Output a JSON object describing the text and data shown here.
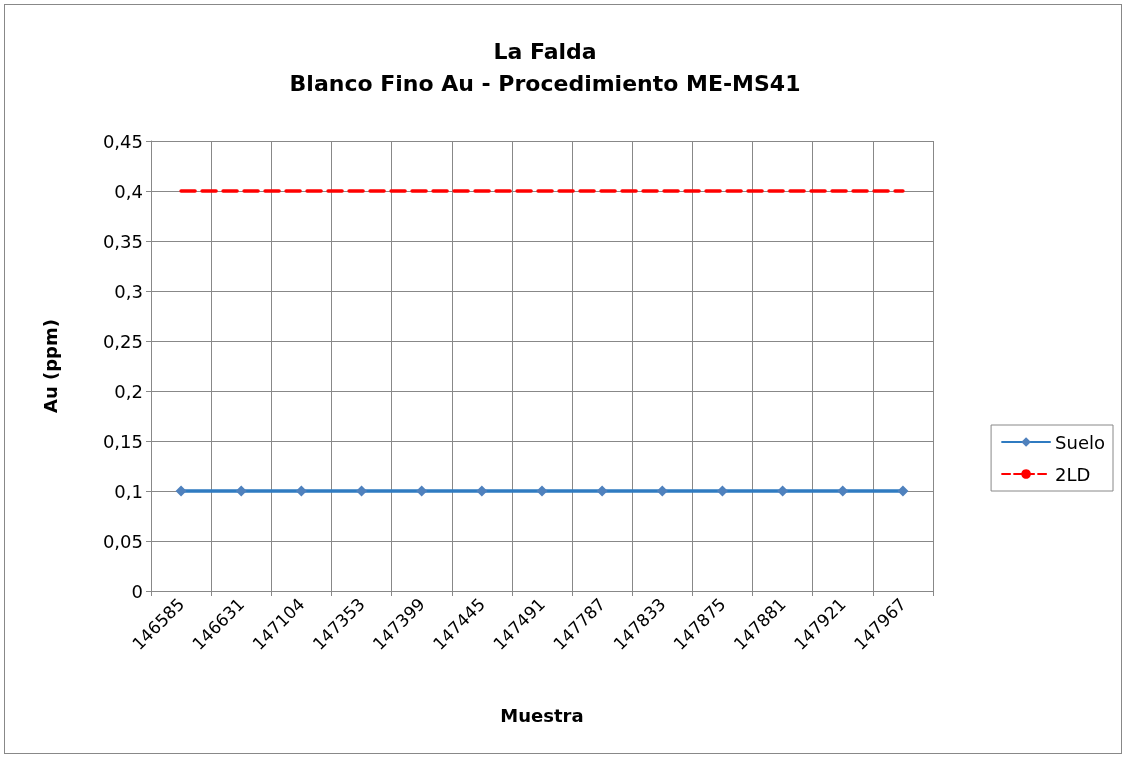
{
  "chart_data": {
    "type": "line",
    "title": "La Falda",
    "subtitle": "Blanco Fino Au - Procedimiento ME-MS41",
    "xlabel": "Muestra",
    "ylabel": "Au (ppm)",
    "categories": [
      "146585",
      "146631",
      "147104",
      "147353",
      "147399",
      "147445",
      "147491",
      "147787",
      "147833",
      "147875",
      "147881",
      "147921",
      "147967"
    ],
    "series": [
      {
        "name": "Suelo",
        "color": "#2f7bc1",
        "marker": "diamond",
        "line_style": "solid",
        "values": [
          0.1,
          0.1,
          0.1,
          0.1,
          0.1,
          0.1,
          0.1,
          0.1,
          0.1,
          0.1,
          0.1,
          0.1,
          0.1
        ]
      },
      {
        "name": "2LD",
        "color": "#ff0000",
        "marker": "none",
        "line_style": "dashed",
        "values": [
          0.4,
          0.4,
          0.4,
          0.4,
          0.4,
          0.4,
          0.4,
          0.4,
          0.4,
          0.4,
          0.4,
          0.4,
          0.4
        ]
      }
    ],
    "ylim": [
      0,
      0.45
    ],
    "yticks": [
      0,
      {
        "value": 0.05,
        "label": "0,05"
      },
      {
        "value": 0.1,
        "label": "0,1"
      },
      {
        "value": 0.15,
        "label": "0,15"
      },
      {
        "value": 0.2,
        "label": "0,2"
      },
      {
        "value": 0.25,
        "label": "0,25"
      },
      {
        "value": 0.3,
        "label": "0,3"
      },
      {
        "value": 0.35,
        "label": "0,35"
      },
      {
        "value": 0.4,
        "label": "0,4"
      },
      {
        "value": 0.45,
        "label": "0,45"
      }
    ],
    "grid": true,
    "legend": "right"
  }
}
